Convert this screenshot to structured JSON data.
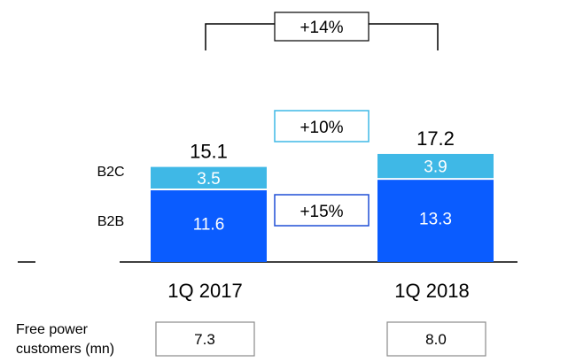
{
  "chart_data": {
    "type": "bar",
    "stacked": true,
    "categories": [
      "1Q 2017",
      "1Q 2018"
    ],
    "series": [
      {
        "name": "B2B",
        "values": [
          11.6,
          13.3
        ],
        "color": "#0a5cff"
      },
      {
        "name": "B2C",
        "values": [
          3.5,
          3.9
        ],
        "color": "#3fb8e6"
      }
    ],
    "totals": [
      "15.1",
      "17.2"
    ],
    "value_labels": {
      "B2B": [
        "11.6",
        "13.3"
      ],
      "B2C": [
        "3.5",
        "3.9"
      ]
    },
    "growth": {
      "total": "+14%",
      "B2C": "+10%",
      "B2B": "+15%"
    },
    "footer": {
      "label_line1": "Free power",
      "label_line2": "customers (mn)",
      "values": [
        "7.3",
        "8.0"
      ]
    },
    "ylim": [
      0,
      18
    ]
  },
  "colors": {
    "b2b": "#0a5cff",
    "b2c": "#3fb8e6",
    "box_border": "#1f4fd6",
    "axis": "#000000"
  }
}
